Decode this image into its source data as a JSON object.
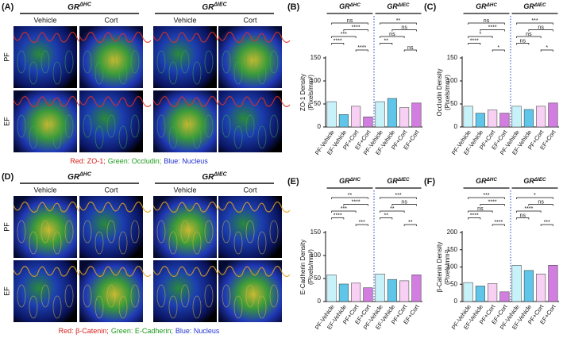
{
  "panels": [
    {
      "label": "(A)",
      "genotypes": [
        {
          "base": "GR",
          "sup": "ΔHC"
        },
        {
          "base": "GR",
          "sup": "ΔIEC"
        }
      ],
      "conditions": [
        "Vehicle",
        "Cort",
        "Vehicle",
        "Cort"
      ],
      "rows": [
        "PF",
        "EF"
      ],
      "caption": [
        {
          "text": "Red: ZO-1;",
          "color": "#d8201c"
        },
        {
          "text": "Green: Occludin;",
          "color": "#1e9a1e"
        },
        {
          "text": "Blue: Nucleus",
          "color": "#2030d0"
        }
      ]
    },
    {
      "label": "(D)",
      "genotypes": [
        {
          "base": "GR",
          "sup": "ΔHC"
        },
        {
          "base": "GR",
          "sup": "ΔIEC"
        }
      ],
      "conditions": [
        "Vehicle",
        "Cort",
        "Vehicle",
        "Cort"
      ],
      "rows": [
        "PF",
        "EF"
      ],
      "caption": [
        {
          "text": "Red: β-Catenin;",
          "color": "#d8201c"
        },
        {
          "text": "Green: E-Cadherin;",
          "color": "#1e9a1e"
        },
        {
          "text": "Blue: Nucleus",
          "color": "#2030d0"
        }
      ]
    }
  ],
  "chart_data": [
    {
      "type": "bar",
      "label": "(B)",
      "y_label": [
        "ZO-1 Density",
        "(Pixels/mm²)"
      ],
      "groups": [
        {
          "base": "GR",
          "sup": "ΔHC"
        },
        {
          "base": "GR",
          "sup": "ΔIEC"
        }
      ],
      "categories": [
        "PF-Vehicle",
        "EF-Vehicle",
        "PF+Cort",
        "EF+Cort",
        "PF-Vehicle",
        "EF-Vehicle",
        "PF+Cort",
        "EF+Cort"
      ],
      "values": [
        55,
        27,
        45,
        22,
        55,
        62,
        42,
        52
      ],
      "colors": [
        "#c8f2fa",
        "#5fc6ea",
        "#f8d0f4",
        "#d27ee0",
        "#c8f2fa",
        "#5fc6ea",
        "#f8d0f4",
        "#d27ee0"
      ],
      "ylim": [
        0,
        150
      ],
      "yticks": [
        0,
        50,
        100,
        150
      ],
      "annotations": [
        [
          "ns",
          "****",
          "***",
          "****",
          "****"
        ],
        [
          "**",
          "ns",
          "ns",
          "**",
          "ns"
        ]
      ]
    },
    {
      "type": "bar",
      "label": "(C)",
      "y_label": [
        "Occludin Density",
        "(Pixels/mm²)"
      ],
      "groups": [
        {
          "base": "GR",
          "sup": "ΔHC"
        },
        {
          "base": "GR",
          "sup": "ΔIEC"
        }
      ],
      "categories": [
        "PF-Vehicle",
        "EF-Vehicle",
        "PF+Cort",
        "EF+Cort",
        "PF-Vehicle",
        "EF-Vehicle",
        "PF+Cort",
        "EF+Cort"
      ],
      "values": [
        45,
        30,
        37,
        30,
        45,
        38,
        45,
        52
      ],
      "colors": [
        "#c8f2fa",
        "#5fc6ea",
        "#f8d0f4",
        "#d27ee0",
        "#c8f2fa",
        "#5fc6ea",
        "#f8d0f4",
        "#d27ee0"
      ],
      "ylim": [
        0,
        150
      ],
      "yticks": [
        0,
        50,
        100,
        150
      ],
      "annotations": [
        [
          "ns",
          "****",
          "*",
          "****",
          "*"
        ],
        [
          "***",
          "ns",
          "ns",
          "ns",
          "*"
        ]
      ]
    },
    {
      "type": "bar",
      "label": "(E)",
      "y_label": [
        "E-Cadherin Density",
        "(Pixels/mm²)"
      ],
      "groups": [
        {
          "base": "GR",
          "sup": "ΔHC"
        },
        {
          "base": "GR",
          "sup": "ΔIEC"
        }
      ],
      "categories": [
        "PF-Vehicle",
        "EF-Vehicle",
        "PF+Cort",
        "EF+Cort",
        "PF-Vehicle",
        "EF-Vehicle",
        "PF+Cort",
        "EF+Cort"
      ],
      "values": [
        58,
        38,
        40,
        30,
        60,
        48,
        45,
        58
      ],
      "colors": [
        "#c8f2fa",
        "#5fc6ea",
        "#f8d0f4",
        "#d27ee0",
        "#c8f2fa",
        "#5fc6ea",
        "#f8d0f4",
        "#d27ee0"
      ],
      "ylim": [
        0,
        150
      ],
      "yticks": [
        0,
        50,
        100,
        150
      ],
      "annotations": [
        [
          "**",
          "****",
          "***",
          "****",
          "***"
        ],
        [
          "***",
          "ns",
          "**",
          "**",
          "**"
        ]
      ]
    },
    {
      "type": "bar",
      "label": "(F)",
      "y_label": [
        "β-Catenin Density",
        "(Pixels/mm²)"
      ],
      "groups": [
        {
          "base": "GR",
          "sup": "ΔHC"
        },
        {
          "base": "GR",
          "sup": "ΔIEC"
        }
      ],
      "categories": [
        "PF-Vehicle",
        "EF-Vehicle",
        "PF+Cort",
        "EF+Cort",
        "PF-Vehicle",
        "EF-Vehicle",
        "PF+Cort",
        "EF+Cort"
      ],
      "values": [
        55,
        45,
        52,
        28,
        105,
        90,
        80,
        105
      ],
      "colors": [
        "#c8f2fa",
        "#5fc6ea",
        "#f8d0f4",
        "#d27ee0",
        "#c8f2fa",
        "#5fc6ea",
        "#f8d0f4",
        "#d27ee0"
      ],
      "ylim": [
        0,
        200
      ],
      "yticks": [
        0,
        50,
        100,
        150,
        200
      ],
      "annotations": [
        [
          "***",
          "****",
          "ns",
          "****",
          "****"
        ],
        [
          "*",
          "ns",
          "****",
          "ns",
          "***"
        ]
      ]
    }
  ]
}
